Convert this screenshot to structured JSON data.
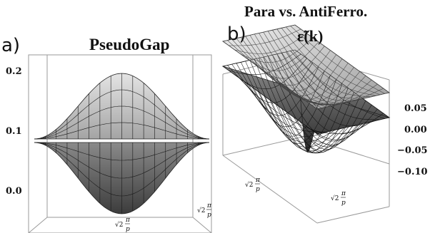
{
  "figure": {
    "header": "Para vs. AntiFerro.",
    "panel_a": {
      "letter": "a)",
      "title": "PseudoGap",
      "z_ticks": [
        "0.2",
        "0.1",
        "0.0"
      ],
      "axis_label_radical": "√2",
      "axis_label_num": "π",
      "axis_label_den": "p"
    },
    "panel_b": {
      "letter": "b)",
      "title": "ε̃(k)",
      "z_ticks": [
        "0.05",
        "0.00",
        "−0.05",
        "−0.10"
      ],
      "axis_label_radical": "√2",
      "axis_label_num": "π",
      "axis_label_den": "p"
    }
  },
  "colors": {
    "surface_light": "#d4d4d4",
    "surface_mid": "#a8a8a8",
    "surface_dark": "#5a5a5a",
    "mesh_line": "#1a1a1a",
    "box_line": "#9a9a9a"
  }
}
